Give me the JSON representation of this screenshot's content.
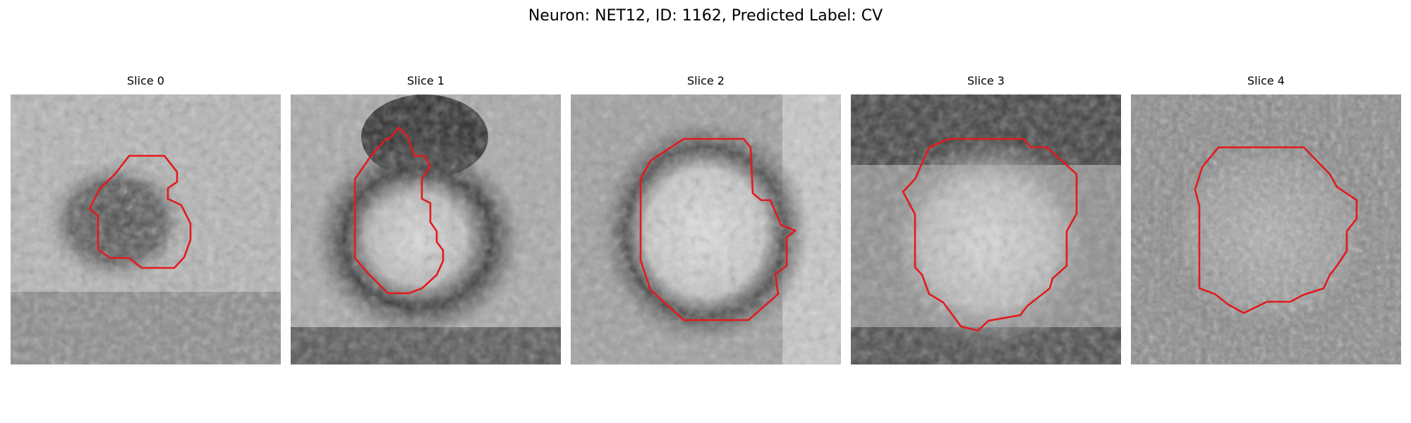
{
  "figure": {
    "title": "Neuron: NET12, ID: 1162, Predicted Label: CV"
  },
  "panels": [
    {
      "title": "Slice 0"
    },
    {
      "title": "Slice 1"
    },
    {
      "title": "Slice 2"
    },
    {
      "title": "Slice 3"
    },
    {
      "title": "Slice 4"
    }
  ],
  "colors": {
    "contour": "#e31a1c",
    "colormap": "grayscale"
  }
}
